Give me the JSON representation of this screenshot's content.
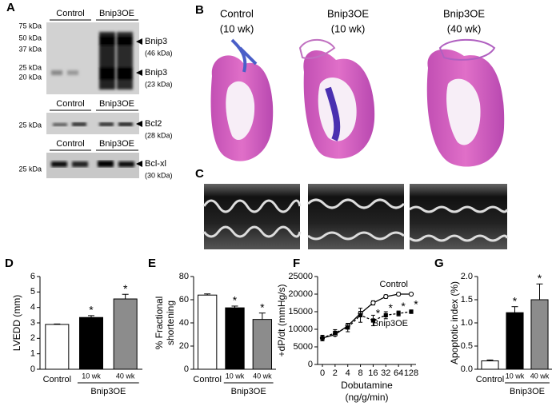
{
  "panel_labels": [
    "A",
    "B",
    "C",
    "D",
    "E",
    "F",
    "G"
  ],
  "blot": {
    "groups": [
      "Control",
      "Bnip3OE"
    ],
    "markers": [
      "75 kDa",
      "50 kDa",
      "37 kDa",
      "25 kDa",
      "20 kDa"
    ],
    "bands": [
      {
        "name": "Bnip3",
        "size": "(46 kDa)"
      },
      {
        "name": "Bnip3",
        "size": "(23 kDa)"
      },
      {
        "name": "Bcl2",
        "size": "(28 kDa)"
      },
      {
        "name": "Bcl-xl",
        "size": "(30 kDa)"
      }
    ]
  },
  "histology": [
    {
      "title": "Control",
      "subtitle": "(10 wk)"
    },
    {
      "title": "Bnip3OE",
      "subtitle": "(10 wk)"
    },
    {
      "title": "Bnip3OE",
      "subtitle": "(40 wk)"
    }
  ],
  "chart_data": [
    {
      "type": "bar",
      "ylabel": [
        "LVEDD (mm)"
      ],
      "categories": [
        "Control",
        "10 wk",
        "40 wk"
      ],
      "group_label": "Bnip3OE",
      "values": [
        2.9,
        3.35,
        4.55
      ],
      "errors": [
        0.03,
        0.12,
        0.3
      ],
      "colors": [
        "#ffffff",
        "#000000",
        "#8c8c8c"
      ],
      "significant": [
        false,
        true,
        true
      ],
      "significance_label": "*",
      "ylim": [
        0,
        6
      ],
      "yticks": [
        0,
        1,
        2,
        3,
        4,
        5,
        6
      ]
    },
    {
      "type": "bar",
      "ylabel": [
        "% Fractional",
        "shortening"
      ],
      "categories": [
        "Control",
        "10 wk",
        "40 wk"
      ],
      "group_label": "Bnip3OE",
      "values": [
        64,
        53,
        43
      ],
      "errors": [
        1,
        1.5,
        5.5
      ],
      "colors": [
        "#ffffff",
        "#000000",
        "#8c8c8c"
      ],
      "significant": [
        false,
        true,
        true
      ],
      "significance_label": "*",
      "ylim": [
        0,
        80
      ],
      "yticks": [
        0,
        20,
        40,
        60,
        80
      ]
    },
    {
      "type": "line",
      "ylabel": [
        "+dP/dt (mmHg/s)"
      ],
      "xlabel": [
        "Dobutamine",
        "(ng/g/min)"
      ],
      "categories": [
        "0",
        "2",
        "4",
        "8",
        "16",
        "32",
        "64",
        "128"
      ],
      "series": [
        {
          "name": "Control",
          "color": "#000000",
          "marker": "circle",
          "dashed": false,
          "values": [
            7500,
            8500,
            11000,
            14500,
            17500,
            19300,
            20000,
            20000
          ],
          "errors": [
            300,
            400,
            500,
            600,
            600,
            500,
            400,
            300
          ],
          "significant": [
            false,
            false,
            false,
            false,
            false,
            false,
            false,
            false
          ]
        },
        {
          "name": "Bnip3OE",
          "color": "#000000",
          "marker": "square",
          "dashed": true,
          "values": [
            7500,
            9000,
            10500,
            14000,
            12500,
            14000,
            14500,
            15000
          ],
          "errors": [
            800,
            900,
            1200,
            2000,
            1500,
            1000,
            700,
            500
          ],
          "significant": [
            false,
            false,
            false,
            false,
            true,
            true,
            true,
            true
          ]
        }
      ],
      "significance_label": "*",
      "ylim": [
        0,
        25000
      ],
      "yticks": [
        0,
        5000,
        10000,
        15000,
        20000,
        25000
      ]
    },
    {
      "type": "bar",
      "ylabel": [
        "Apoptotic index (%)"
      ],
      "categories": [
        "Control",
        "10 wk",
        "40 wk"
      ],
      "group_label": "Bnip3OE",
      "values": [
        0.18,
        1.22,
        1.5
      ],
      "errors": [
        0.02,
        0.13,
        0.34
      ],
      "colors": [
        "#ffffff",
        "#000000",
        "#8c8c8c"
      ],
      "significant": [
        false,
        true,
        true
      ],
      "significance_label": "*",
      "ylim": [
        0,
        2
      ],
      "yticks": [
        {
          "value": 0,
          "label": "0.0"
        },
        {
          "value": 0.5,
          "label": "0.5"
        },
        {
          "value": 1,
          "label": "1.0"
        },
        {
          "value": 1.5,
          "label": "1.5"
        },
        {
          "value": 2,
          "label": "2.0"
        }
      ]
    }
  ]
}
